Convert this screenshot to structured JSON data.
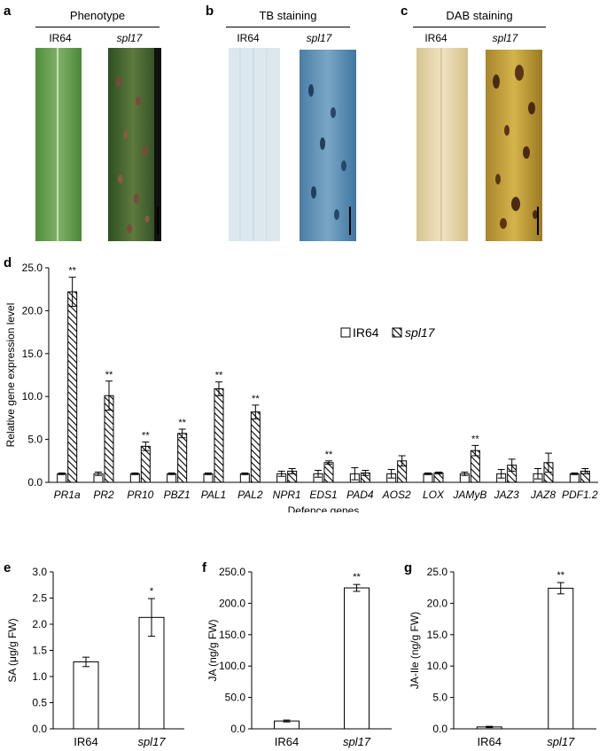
{
  "panels_top": {
    "a": {
      "letter": "a",
      "title": "Phenotype",
      "labels": [
        "IR64",
        "spl17"
      ]
    },
    "b": {
      "letter": "b",
      "title": "TB staining",
      "labels": [
        "IR64",
        "spl17"
      ]
    },
    "c": {
      "letter": "c",
      "title": "DAB staining",
      "labels": [
        "IR64",
        "spl17"
      ]
    }
  },
  "colors": {
    "ir64_bar": "#ffffff",
    "spl17_bar": "hatched",
    "axis": "#000000"
  },
  "chart_data": [
    {
      "panel": "d",
      "type": "bar",
      "xlabel": "Defence genes",
      "ylabel": "Relative gene expression level",
      "ylim": [
        0,
        25
      ],
      "yticks": [
        "0.0",
        "5.0",
        "10.0",
        "15.0",
        "20.0",
        "25.0"
      ],
      "categories": [
        "PR1a",
        "PR2",
        "PR10",
        "PBZ1",
        "PAL1",
        "PAL2",
        "NPR1",
        "EDS1",
        "PAD4",
        "AOS2",
        "LOX",
        "JAMyB",
        "JAZ3",
        "JAZ8",
        "PDF1.2"
      ],
      "legend": [
        "IR64",
        "spl17"
      ],
      "legend_position": "top-right",
      "series": [
        {
          "name": "IR64",
          "values": [
            1.0,
            1.0,
            1.0,
            1.0,
            1.0,
            1.0,
            1.0,
            1.0,
            1.0,
            1.0,
            1.0,
            1.0,
            1.0,
            1.0,
            1.0
          ],
          "errors": [
            0.1,
            0.2,
            0.1,
            0.1,
            0.1,
            0.1,
            0.3,
            0.4,
            0.7,
            0.5,
            0.1,
            0.2,
            0.5,
            0.6,
            0.1
          ]
        },
        {
          "name": "spl17",
          "values": [
            22.2,
            10.1,
            4.2,
            5.7,
            10.9,
            8.2,
            1.3,
            2.3,
            1.1,
            2.5,
            1.1,
            3.7,
            2.0,
            2.3,
            1.3
          ],
          "errors": [
            1.7,
            1.7,
            0.5,
            0.5,
            0.8,
            0.8,
            0.3,
            0.2,
            0.3,
            0.6,
            0.1,
            0.6,
            0.7,
            1.1,
            0.3
          ]
        }
      ],
      "significance": [
        "**",
        "**",
        "**",
        "**",
        "**",
        "**",
        "",
        "**",
        "",
        "",
        "",
        "**",
        "",
        "",
        ""
      ]
    },
    {
      "panel": "e",
      "type": "bar",
      "ylabel": "SA (μg/g FW)",
      "ylim": [
        0,
        3
      ],
      "yticks": [
        "0.0",
        "0.5",
        "1.0",
        "1.5",
        "2.0",
        "2.5",
        "3.0"
      ],
      "categories": [
        "IR64",
        "spl17"
      ],
      "values": [
        1.28,
        2.13
      ],
      "errors": [
        0.09,
        0.36
      ],
      "significance": [
        "",
        "*"
      ]
    },
    {
      "panel": "f",
      "type": "bar",
      "ylabel": "JA (ng/g FW)",
      "ylim": [
        0,
        250
      ],
      "yticks": [
        "0.0",
        "50.0",
        "100.0",
        "150.0",
        "200.0",
        "250.0"
      ],
      "categories": [
        "IR64",
        "spl17"
      ],
      "values": [
        12.5,
        224.5
      ],
      "errors": [
        1.5,
        5.5
      ],
      "significance": [
        "",
        "**"
      ]
    },
    {
      "panel": "g",
      "type": "bar",
      "ylabel": "JA-Ile (ng/g FW)",
      "ylim": [
        0,
        25
      ],
      "yticks": [
        "0.0",
        "5.0",
        "10.0",
        "15.0",
        "20.0",
        "25.0"
      ],
      "categories": [
        "IR64",
        "spl17"
      ],
      "values": [
        0.3,
        22.4
      ],
      "errors": [
        0.1,
        0.9
      ],
      "significance": [
        "",
        "**"
      ]
    }
  ],
  "panel_letters_bottom": [
    "d",
    "e",
    "f",
    "g"
  ]
}
